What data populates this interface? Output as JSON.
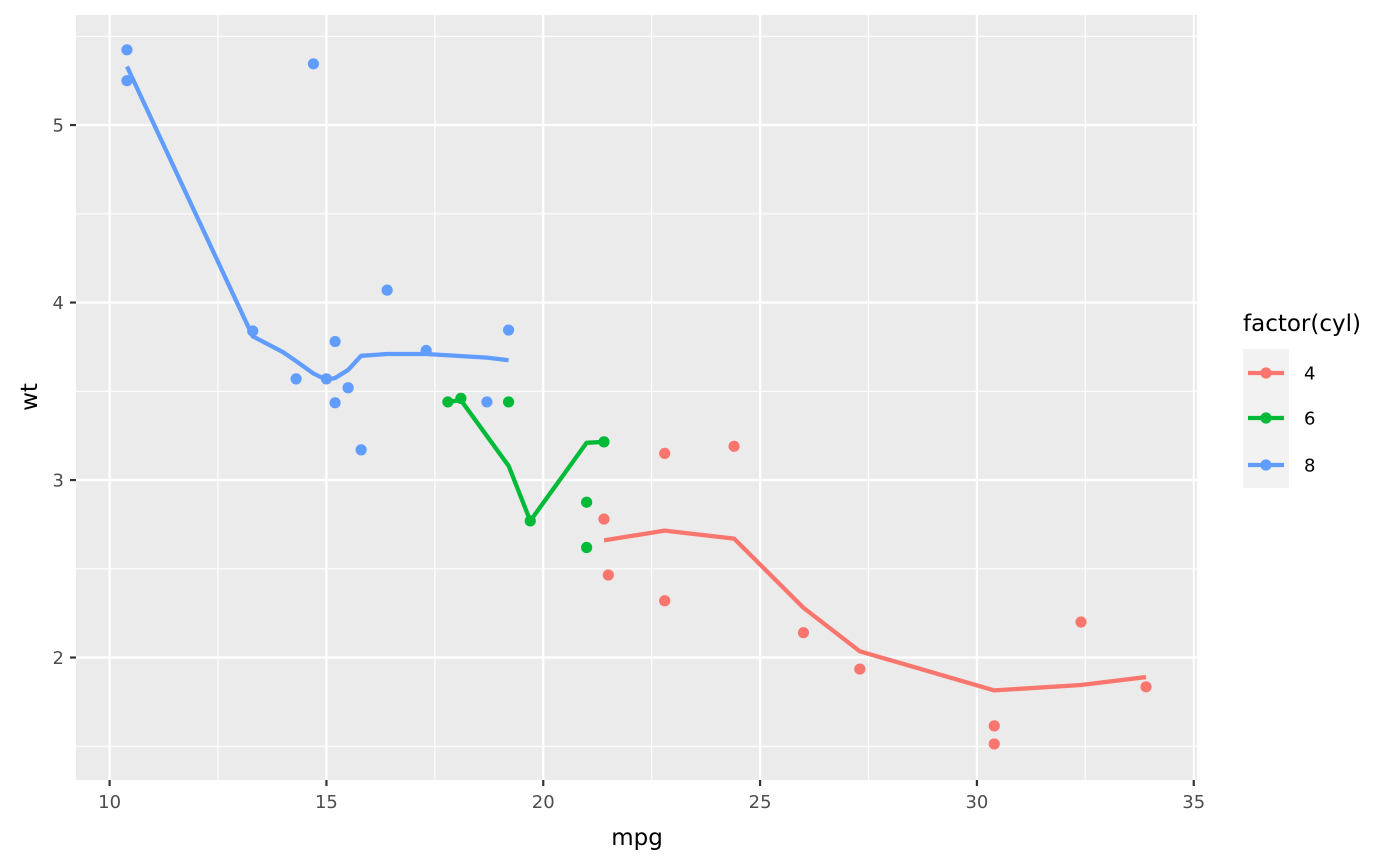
{
  "chart_data": {
    "type": "scatter",
    "xlabel": "mpg",
    "ylabel": "wt",
    "xlim": [
      9.225,
      35.075
    ],
    "ylim": [
      1.31,
      5.62
    ],
    "x_ticks": [
      10,
      15,
      20,
      25,
      30,
      35
    ],
    "y_ticks": [
      2,
      3,
      4,
      5
    ],
    "grid": true,
    "legend": {
      "title": "factor(cyl)",
      "position": "right"
    },
    "series": [
      {
        "name": "4",
        "color": "#F8766D",
        "points": [
          {
            "x": 22.8,
            "y": 2.32
          },
          {
            "x": 24.4,
            "y": 3.19
          },
          {
            "x": 22.8,
            "y": 3.15
          },
          {
            "x": 32.4,
            "y": 2.2
          },
          {
            "x": 30.4,
            "y": 1.615
          },
          {
            "x": 33.9,
            "y": 1.835
          },
          {
            "x": 21.5,
            "y": 2.465
          },
          {
            "x": 27.3,
            "y": 1.935
          },
          {
            "x": 26.0,
            "y": 2.14
          },
          {
            "x": 30.4,
            "y": 1.513
          },
          {
            "x": 21.4,
            "y": 2.78
          }
        ],
        "line": [
          {
            "x": 21.4,
            "y": 2.66
          },
          {
            "x": 22.8,
            "y": 2.715
          },
          {
            "x": 24.4,
            "y": 2.67
          },
          {
            "x": 26.0,
            "y": 2.28
          },
          {
            "x": 27.3,
            "y": 2.035
          },
          {
            "x": 30.4,
            "y": 1.815
          },
          {
            "x": 32.4,
            "y": 1.845
          },
          {
            "x": 33.9,
            "y": 1.89
          }
        ]
      },
      {
        "name": "6",
        "color": "#00BA38",
        "points": [
          {
            "x": 21.0,
            "y": 2.62
          },
          {
            "x": 21.0,
            "y": 2.875
          },
          {
            "x": 21.4,
            "y": 3.215
          },
          {
            "x": 18.1,
            "y": 3.46
          },
          {
            "x": 19.2,
            "y": 3.44
          },
          {
            "x": 17.8,
            "y": 3.44
          },
          {
            "x": 19.7,
            "y": 2.77
          }
        ],
        "line": [
          {
            "x": 17.8,
            "y": 3.44
          },
          {
            "x": 18.1,
            "y": 3.45
          },
          {
            "x": 19.2,
            "y": 3.08
          },
          {
            "x": 19.7,
            "y": 2.77
          },
          {
            "x": 21.0,
            "y": 3.21
          },
          {
            "x": 21.4,
            "y": 3.215
          }
        ]
      },
      {
        "name": "8",
        "color": "#619CFF",
        "points": [
          {
            "x": 18.7,
            "y": 3.44
          },
          {
            "x": 14.3,
            "y": 3.57
          },
          {
            "x": 16.4,
            "y": 4.07
          },
          {
            "x": 17.3,
            "y": 3.73
          },
          {
            "x": 15.2,
            "y": 3.78
          },
          {
            "x": 10.4,
            "y": 5.25
          },
          {
            "x": 10.4,
            "y": 5.424
          },
          {
            "x": 14.7,
            "y": 5.345
          },
          {
            "x": 15.5,
            "y": 3.52
          },
          {
            "x": 15.2,
            "y": 3.435
          },
          {
            "x": 13.3,
            "y": 3.84
          },
          {
            "x": 19.2,
            "y": 3.845
          },
          {
            "x": 15.8,
            "y": 3.17
          },
          {
            "x": 15.0,
            "y": 3.57
          }
        ],
        "line": [
          {
            "x": 10.4,
            "y": 5.33
          },
          {
            "x": 13.3,
            "y": 3.81
          },
          {
            "x": 14.0,
            "y": 3.72
          },
          {
            "x": 14.3,
            "y": 3.67
          },
          {
            "x": 14.7,
            "y": 3.6
          },
          {
            "x": 15.0,
            "y": 3.565
          },
          {
            "x": 15.2,
            "y": 3.575
          },
          {
            "x": 15.5,
            "y": 3.62
          },
          {
            "x": 15.8,
            "y": 3.7
          },
          {
            "x": 16.4,
            "y": 3.71
          },
          {
            "x": 17.3,
            "y": 3.71
          },
          {
            "x": 18.7,
            "y": 3.69
          },
          {
            "x": 19.2,
            "y": 3.675
          }
        ]
      }
    ]
  }
}
